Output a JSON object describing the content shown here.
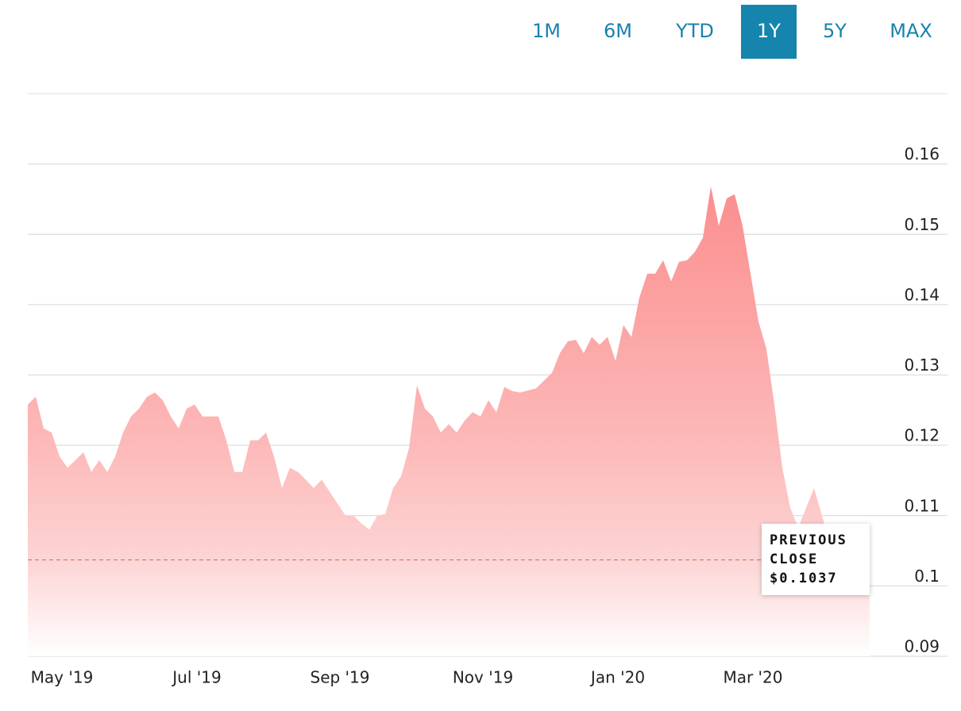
{
  "range_buttons": [
    "1M",
    "6M",
    "YTD",
    "1Y",
    "5Y",
    "MAX"
  ],
  "active_range": 3,
  "chart_data": {
    "type": "area",
    "color": "#fb8f8f",
    "categories": [
      null,
      null,
      null,
      null,
      "May '19",
      null,
      null,
      null,
      null,
      null,
      null,
      null,
      null,
      null,
      null,
      null,
      null,
      null,
      null,
      null,
      null,
      "Jul '19",
      null,
      null,
      null,
      null,
      null,
      null,
      null,
      null,
      null,
      null,
      null,
      null,
      null,
      null,
      null,
      null,
      null,
      "Sep '19",
      null,
      null,
      null,
      null,
      null,
      null,
      null,
      null,
      null,
      null,
      null,
      null,
      null,
      null,
      null,
      null,
      null,
      "Nov '19",
      null,
      null,
      null,
      null,
      null,
      null,
      null,
      null,
      null,
      null,
      null,
      null,
      null,
      null,
      null,
      null,
      "Jan '20",
      null,
      null,
      null,
      null,
      null,
      null,
      null,
      null,
      null,
      null,
      null,
      null,
      null,
      null,
      null,
      null,
      "Mar '20",
      null,
      null,
      null,
      null,
      null,
      null,
      null,
      null,
      null,
      null,
      null,
      null,
      null,
      null,
      null
    ],
    "values": [
      0.1258,
      0.1269,
      0.1224,
      0.1218,
      0.1184,
      0.1168,
      0.1179,
      0.119,
      0.1162,
      0.1179,
      0.1162,
      0.1184,
      0.1218,
      0.1241,
      0.1252,
      0.1269,
      0.1275,
      0.1264,
      0.1241,
      0.1224,
      0.1252,
      0.1258,
      0.1241,
      0.1241,
      0.1241,
      0.1207,
      0.1162,
      0.1162,
      0.1207,
      0.1207,
      0.1218,
      0.1184,
      0.1139,
      0.1168,
      0.1162,
      0.1151,
      0.1139,
      0.1151,
      0.1134,
      0.1117,
      0.11,
      0.11,
      0.1089,
      0.108,
      0.11,
      0.1102,
      0.1139,
      0.1156,
      0.1196,
      0.1285,
      0.1252,
      0.1241,
      0.1218,
      0.123,
      0.1218,
      0.1235,
      0.1247,
      0.1241,
      0.1264,
      0.1247,
      0.1283,
      0.1277,
      0.1275,
      0.1278,
      0.1281,
      0.1292,
      0.1303,
      0.1331,
      0.1348,
      0.135,
      0.1331,
      0.1354,
      0.1343,
      0.1354,
      0.132,
      0.1371,
      0.1354,
      0.141,
      0.1444,
      0.1444,
      0.1463,
      0.1433,
      0.1461,
      0.1463,
      0.1475,
      0.1495,
      0.1568,
      0.1512,
      0.1551,
      0.1557,
      0.1512,
      0.1444,
      0.1376,
      0.1337,
      0.1258,
      0.1168,
      0.1111,
      0.1083,
      0.1111,
      0.1139,
      0.11,
      0.106,
      0.104,
      0.105,
      0.103,
      0.104,
      0.1037
    ],
    "ylim": [
      0.09,
      0.17
    ],
    "yticks": [
      0.09,
      0.1,
      0.11,
      0.12,
      0.13,
      0.14,
      0.15,
      0.16
    ],
    "grid": true,
    "previous_close": {
      "label": "PREVIOUS CLOSE",
      "value": 0.1037,
      "value_label": "$0.1037"
    }
  }
}
